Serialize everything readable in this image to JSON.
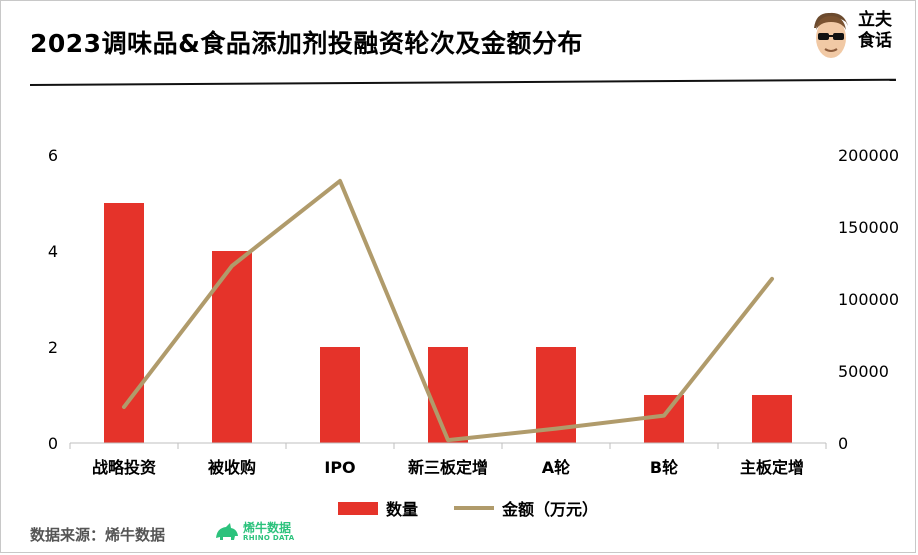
{
  "header": {
    "title": "2023调味品&食品添加剂投融资轮次及金额分布",
    "logo_text": "立夫\n食话"
  },
  "footer": {
    "source_label": "数据来源：烯牛数据",
    "brand_name": "烯牛数据",
    "brand_sub": "RHINO DATA"
  },
  "colors": {
    "bar": "#e5332a",
    "line": "#b09b6b",
    "brand": "#2cc27c"
  },
  "chart_data": {
    "type": "bar+line",
    "categories": [
      "战略投资",
      "被收购",
      "IPO",
      "新三板定增",
      "A轮",
      "B轮",
      "主板定增"
    ],
    "series": [
      {
        "name": "数量",
        "type": "bar",
        "axis": "left",
        "values": [
          5,
          4,
          2,
          2,
          2,
          1,
          1
        ]
      },
      {
        "name": "金额（万元）",
        "type": "line",
        "axis": "right",
        "values": [
          25000,
          123000,
          182000,
          2000,
          10000,
          19000,
          114000
        ]
      }
    ],
    "y_left": {
      "min": 0,
      "max": 6,
      "ticks": [
        "0",
        "2",
        "4",
        "6"
      ]
    },
    "y_right": {
      "min": 0,
      "max": 200000,
      "ticks": [
        "0",
        "50000",
        "100000",
        "150000",
        "200000"
      ]
    },
    "grid": false,
    "legend_position": "bottom"
  }
}
